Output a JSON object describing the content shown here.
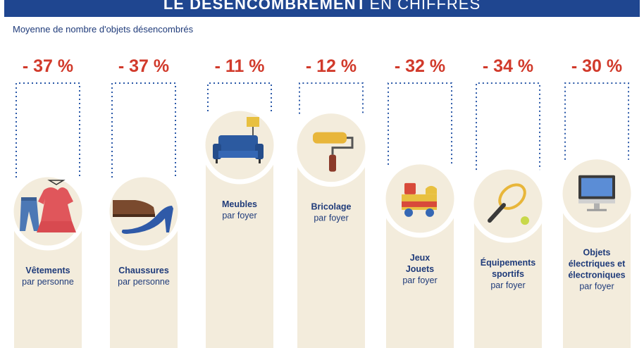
{
  "header": {
    "title_bold": "LE DÉSENCOMBREMENT",
    "title_rest": "EN CHIFFRES"
  },
  "subtitle": "Moyenne de nombre d'objets désencombrés",
  "colors": {
    "banner": "#1f4690",
    "percent": "#d13a2b",
    "column": "#f3ecdc",
    "text": "#1f3b7a",
    "dots": "#2a58a8"
  },
  "chart_data": {
    "type": "bar",
    "title": "",
    "categories": [
      "Vêtements",
      "Chaussures",
      "Meubles",
      "Bricolage",
      "Jeux Jouets",
      "Équipements sportifs",
      "Objets électriques et électroniques"
    ],
    "values": [
      -37,
      -37,
      -11,
      -12,
      -32,
      -34,
      -30
    ],
    "value_unit": "%",
    "items": [
      {
        "value": -37,
        "label": "- 37 %",
        "name_lines": [
          "Vêtements"
        ],
        "unit": "par personne",
        "icon": "clothes-icon"
      },
      {
        "value": -37,
        "label": "- 37 %",
        "name_lines": [
          "Chaussures"
        ],
        "unit": "par personne",
        "icon": "shoes-icon"
      },
      {
        "value": -11,
        "label": "- 11 %",
        "name_lines": [
          "Meubles"
        ],
        "unit": "par foyer",
        "icon": "sofa-icon"
      },
      {
        "value": -12,
        "label": "- 12 %",
        "name_lines": [
          "Bricolage"
        ],
        "unit": "par foyer",
        "icon": "paint-roller-icon"
      },
      {
        "value": -32,
        "label": "- 32 %",
        "name_lines": [
          "Jeux",
          "Jouets"
        ],
        "unit": "par foyer",
        "icon": "toy-train-icon"
      },
      {
        "value": -34,
        "label": "- 34 %",
        "name_lines": [
          "Équipements",
          "sportifs"
        ],
        "unit": "par foyer",
        "icon": "tennis-racket-icon"
      },
      {
        "value": -30,
        "label": "- 30 %",
        "name_lines": [
          "Objets",
          "électriques et",
          "électroniques"
        ],
        "unit": "par foyer",
        "icon": "computer-icon"
      }
    ]
  }
}
